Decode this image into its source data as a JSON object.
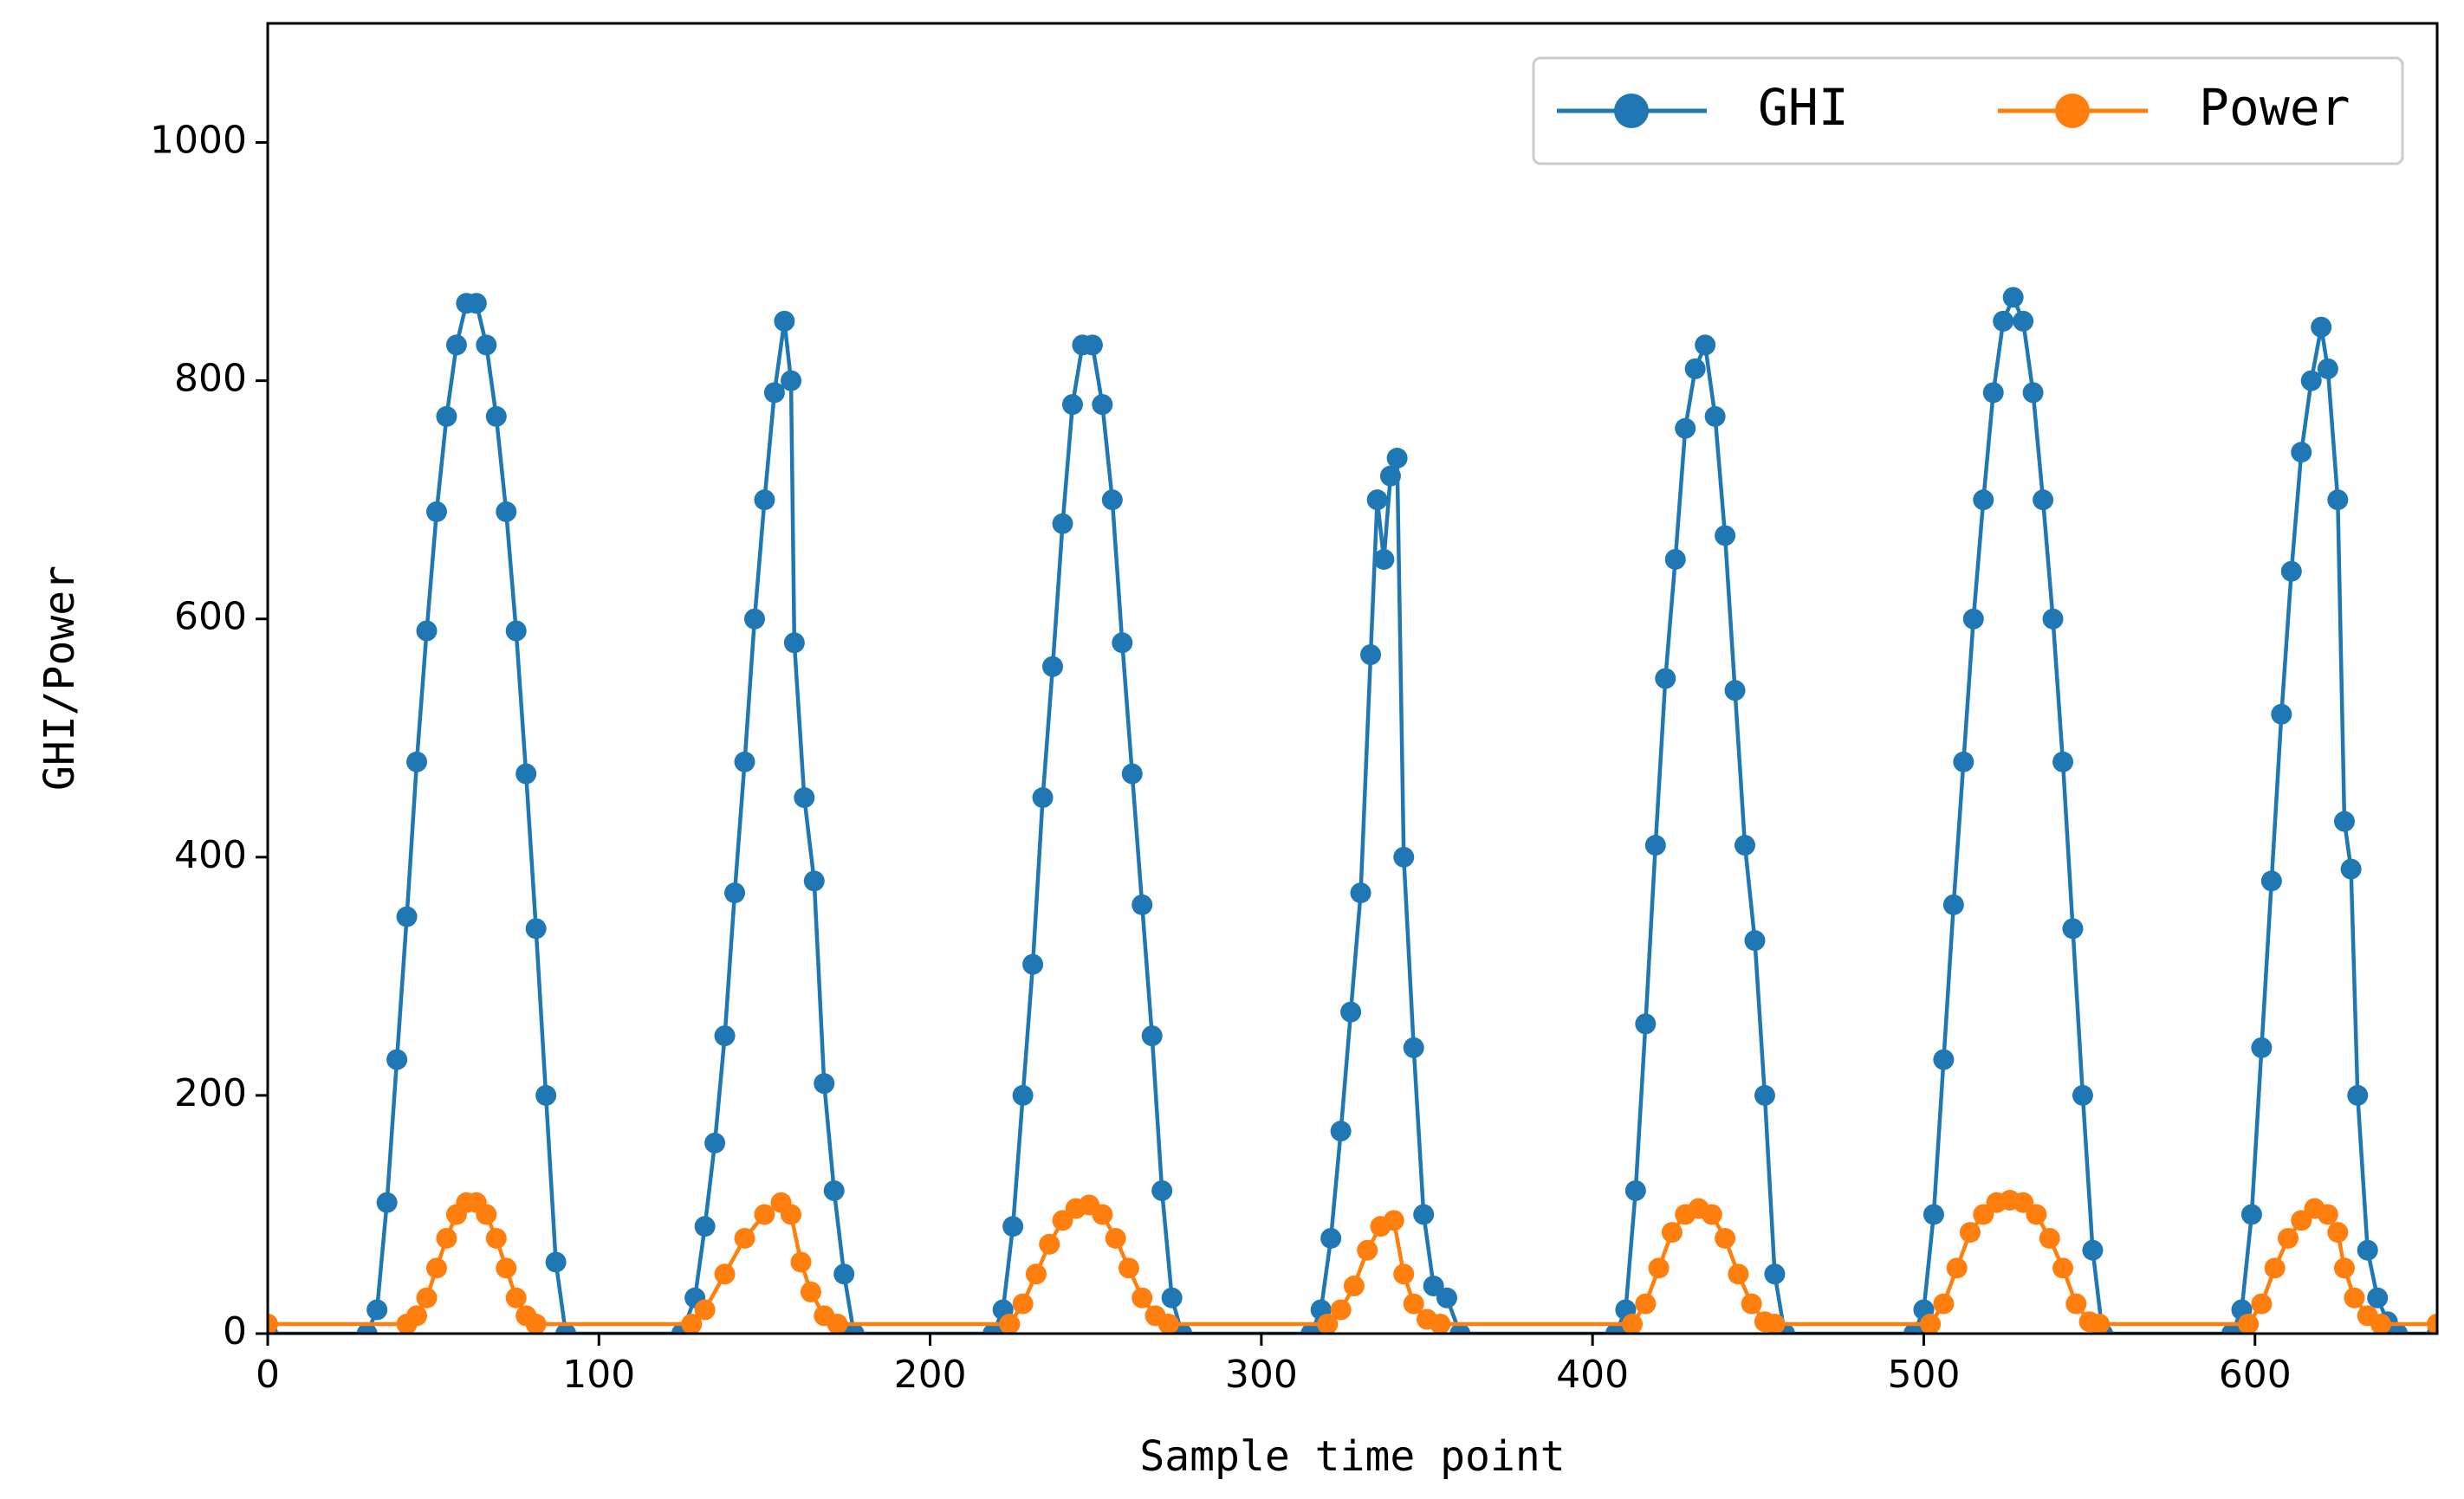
{
  "chart_data": {
    "type": "line",
    "xlabel": "Sample time point",
    "ylabel": "GHI/Power",
    "xlim": [
      0,
      655
    ],
    "ylim": [
      0,
      1100
    ],
    "xticks": [
      0,
      100,
      200,
      300,
      400,
      500,
      600
    ],
    "yticks": [
      0,
      200,
      400,
      600,
      800,
      1000
    ],
    "legend": "upper right",
    "series": [
      {
        "name": "GHI",
        "color": "#1f77b4",
        "x": [
          0,
          30,
          33,
          36,
          39,
          42,
          45,
          48,
          51,
          54,
          57,
          60,
          63,
          66,
          69,
          72,
          75,
          78,
          81,
          84,
          87,
          90,
          125,
          129,
          132,
          135,
          138,
          141,
          144,
          147,
          150,
          153,
          156,
          158,
          159,
          162,
          165,
          168,
          171,
          174,
          177,
          219,
          222,
          225,
          228,
          231,
          234,
          237,
          240,
          243,
          246,
          249,
          252,
          255,
          258,
          261,
          264,
          267,
          270,
          273,
          276,
          315,
          318,
          321,
          324,
          327,
          330,
          333,
          335,
          337,
          339,
          341,
          343,
          346,
          349,
          352,
          356,
          360,
          407,
          410,
          413,
          416,
          419,
          422,
          425,
          428,
          431,
          434,
          437,
          440,
          443,
          446,
          449,
          452,
          455,
          458,
          497,
          500,
          503,
          506,
          509,
          512,
          515,
          518,
          521,
          524,
          527,
          530,
          533,
          536,
          539,
          542,
          545,
          548,
          551,
          554,
          593,
          596,
          599,
          602,
          605,
          608,
          611,
          614,
          617,
          620,
          622,
          625,
          627,
          629,
          631,
          634,
          637,
          640,
          643,
          655
        ],
        "values": [
          0,
          0,
          20,
          110,
          230,
          350,
          480,
          590,
          690,
          770,
          830,
          865,
          865,
          830,
          770,
          690,
          590,
          470,
          340,
          200,
          60,
          0,
          0,
          30,
          90,
          160,
          250,
          370,
          480,
          600,
          700,
          790,
          850,
          800,
          580,
          450,
          380,
          210,
          120,
          50,
          0,
          0,
          20,
          90,
          200,
          310,
          450,
          560,
          680,
          780,
          830,
          830,
          780,
          700,
          580,
          470,
          360,
          250,
          120,
          30,
          0,
          0,
          20,
          80,
          170,
          270,
          370,
          570,
          700,
          650,
          720,
          735,
          400,
          240,
          100,
          40,
          30,
          0,
          0,
          20,
          120,
          260,
          410,
          550,
          650,
          760,
          810,
          830,
          770,
          670,
          540,
          410,
          330,
          200,
          50,
          0,
          0,
          20,
          100,
          230,
          360,
          480,
          600,
          700,
          790,
          850,
          870,
          850,
          790,
          700,
          600,
          480,
          340,
          200,
          70,
          0,
          0,
          20,
          100,
          240,
          380,
          520,
          640,
          740,
          800,
          845,
          810,
          700,
          430,
          390,
          200,
          70,
          30,
          10,
          0,
          0
        ]
      },
      {
        "name": "Power",
        "color": "#ff7f0e",
        "x": [
          0,
          42,
          45,
          48,
          51,
          54,
          57,
          60,
          63,
          66,
          69,
          72,
          75,
          78,
          81,
          128,
          132,
          138,
          144,
          150,
          155,
          158,
          161,
          164,
          168,
          172,
          224,
          228,
          232,
          236,
          240,
          244,
          248,
          252,
          256,
          260,
          264,
          268,
          272,
          320,
          324,
          328,
          332,
          336,
          340,
          343,
          346,
          350,
          354,
          412,
          416,
          420,
          424,
          428,
          432,
          436,
          440,
          444,
          448,
          452,
          455,
          502,
          506,
          510,
          514,
          518,
          522,
          526,
          530,
          534,
          538,
          542,
          546,
          550,
          553,
          598,
          602,
          606,
          610,
          614,
          618,
          622,
          625,
          627,
          630,
          634,
          638,
          655
        ],
        "values": [
          8,
          8,
          15,
          30,
          55,
          80,
          100,
          110,
          110,
          100,
          80,
          55,
          30,
          15,
          8,
          8,
          20,
          50,
          80,
          100,
          110,
          100,
          60,
          35,
          15,
          8,
          8,
          25,
          50,
          75,
          95,
          105,
          108,
          100,
          80,
          55,
          30,
          15,
          8,
          8,
          20,
          40,
          70,
          90,
          95,
          50,
          25,
          12,
          8,
          8,
          25,
          55,
          85,
          100,
          105,
          100,
          80,
          50,
          25,
          10,
          8,
          8,
          25,
          55,
          85,
          100,
          110,
          112,
          110,
          100,
          80,
          55,
          25,
          10,
          8,
          8,
          25,
          55,
          80,
          95,
          105,
          100,
          85,
          55,
          30,
          15,
          8,
          8
        ]
      }
    ]
  }
}
